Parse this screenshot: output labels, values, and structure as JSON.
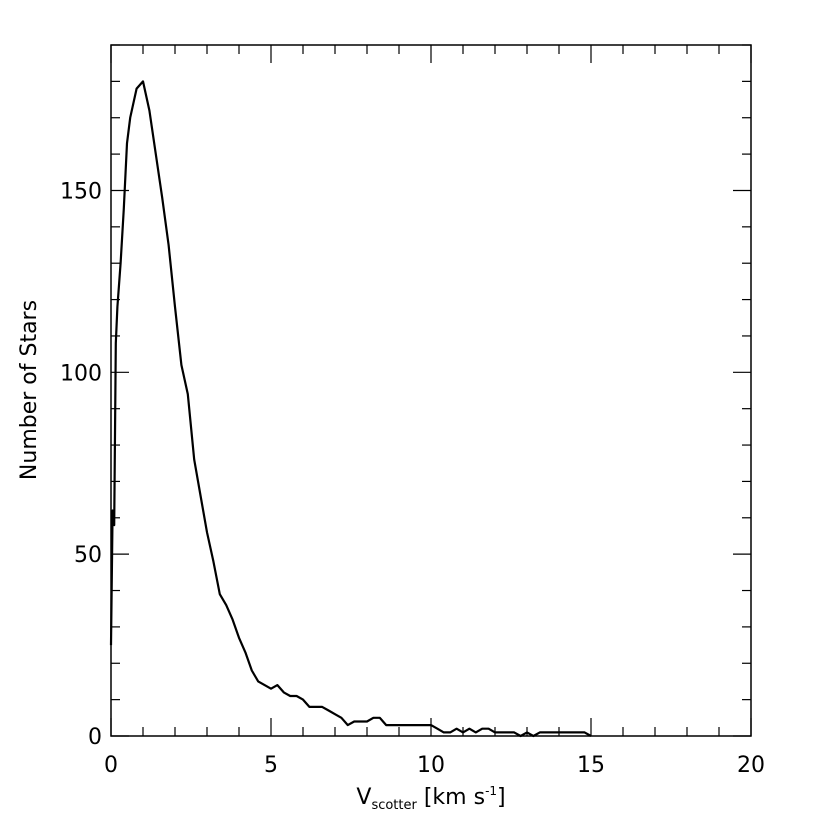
{
  "chart_data": {
    "type": "line",
    "title": "",
    "xlabel": {
      "main": "V",
      "subscript": "scotter",
      "unit_prefix": " [km s",
      "superscript": "-1",
      "unit_suffix": "]"
    },
    "ylabel": "Number of Stars",
    "xlim": [
      0,
      20
    ],
    "ylim": [
      0,
      190
    ],
    "xticks": [
      0,
      5,
      10,
      15,
      20
    ],
    "xtick_labels": [
      "0",
      "5",
      "10",
      "15",
      "20"
    ],
    "yticks": [
      0,
      50,
      100,
      150
    ],
    "ytick_labels": [
      "0",
      "50",
      "100",
      "150"
    ],
    "grid": false,
    "legend": "none",
    "line_color": "#000000",
    "series": [
      {
        "x": [
          0.0,
          0.05,
          0.1,
          0.15,
          0.2,
          0.3,
          0.4,
          0.5,
          0.6,
          0.8,
          1.0,
          1.2,
          1.4,
          1.6,
          1.8,
          2.0,
          2.2,
          2.4,
          2.6,
          2.8,
          3.0,
          3.2,
          3.4,
          3.6,
          3.8,
          4.0,
          4.2,
          4.4,
          4.6,
          4.8,
          5.0,
          5.2,
          5.4,
          5.6,
          5.8,
          6.0,
          6.2,
          6.4,
          6.6,
          6.8,
          7.0,
          7.2,
          7.4,
          7.6,
          7.8,
          8.0,
          8.2,
          8.4,
          8.6,
          8.8,
          9.0,
          9.2,
          9.4,
          9.6,
          9.8,
          10.0,
          10.2,
          10.4,
          10.6,
          10.8,
          11.0,
          11.2,
          11.4,
          11.6,
          11.8,
          12.0,
          12.2,
          12.4,
          12.6,
          12.8,
          13.0,
          13.2,
          13.4,
          13.6,
          13.8,
          14.0,
          14.2,
          14.4,
          14.6,
          14.8,
          15.0
        ],
        "y": [
          25,
          62,
          58,
          108,
          118,
          130,
          145,
          163,
          170,
          178,
          180,
          172,
          160,
          148,
          135,
          118,
          102,
          94,
          76,
          66,
          56,
          48,
          39,
          36,
          32,
          27,
          23,
          18,
          15,
          14,
          13,
          14,
          12,
          11,
          11,
          10,
          8,
          8,
          8,
          7,
          6,
          5,
          3,
          4,
          4,
          4,
          5,
          5,
          3,
          3,
          3,
          3,
          3,
          3,
          3,
          3,
          2,
          1,
          1,
          2,
          1,
          2,
          1,
          2,
          2,
          1,
          1,
          1,
          1,
          0,
          1,
          0,
          1,
          1,
          1,
          1,
          1,
          1,
          1,
          1,
          0
        ]
      }
    ]
  }
}
